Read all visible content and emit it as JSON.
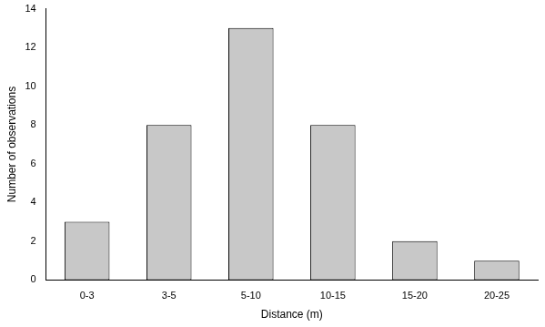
{
  "chart_data": {
    "type": "bar",
    "x_label": "Distance (m)",
    "y_label": "Number of observations",
    "categories": [
      "0-3",
      "3-5",
      "5-10",
      "10-15",
      "15-20",
      "20-25"
    ],
    "values": [
      3,
      8,
      13,
      8,
      2,
      1
    ],
    "color": "#c8c8c8",
    "ylim": [
      0,
      14
    ],
    "yticks": [
      0,
      2,
      4,
      6,
      8,
      10,
      12,
      14
    ],
    "grid": false
  }
}
